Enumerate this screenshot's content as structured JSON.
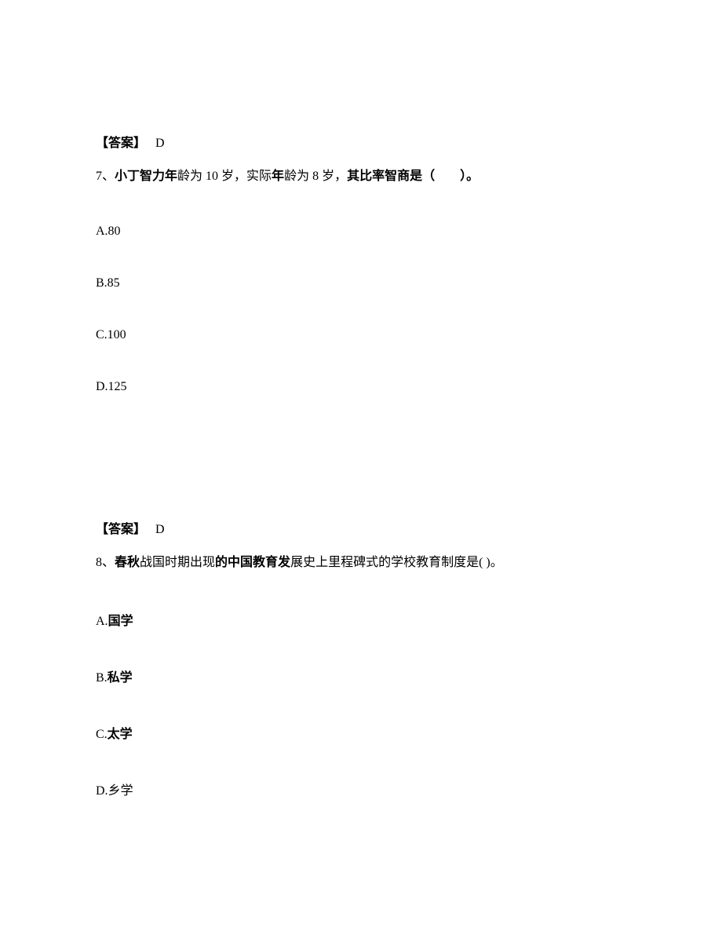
{
  "item1": {
    "answer_label": "【答案】",
    "answer_value": "D",
    "question_number": "7、",
    "question_bold1": "小丁智力年",
    "question_normal1": "龄为 10 岁，实际",
    "question_bold2": "年",
    "question_normal2": "龄为 8 岁，",
    "question_bold3": "其比率智商是（　　）。",
    "options": {
      "a": "A.80",
      "b": "B.85",
      "c": "C.100",
      "d": "D.125"
    }
  },
  "item2": {
    "answer_label": "【答案】",
    "answer_value": "D",
    "question_number": "8、",
    "question_bold1": "春秋",
    "question_normal1": "战国时期出现",
    "question_bold2": "的中国教育发",
    "question_normal2": "展史上里程碑式的学校教育制度是( )。",
    "options": {
      "a_prefix": "A.",
      "a_text": "国学",
      "b_prefix": "B.",
      "b_text": "私学",
      "c_prefix": "C.",
      "c_text": "太学",
      "d_prefix": "D.",
      "d_text": "乡学"
    }
  }
}
